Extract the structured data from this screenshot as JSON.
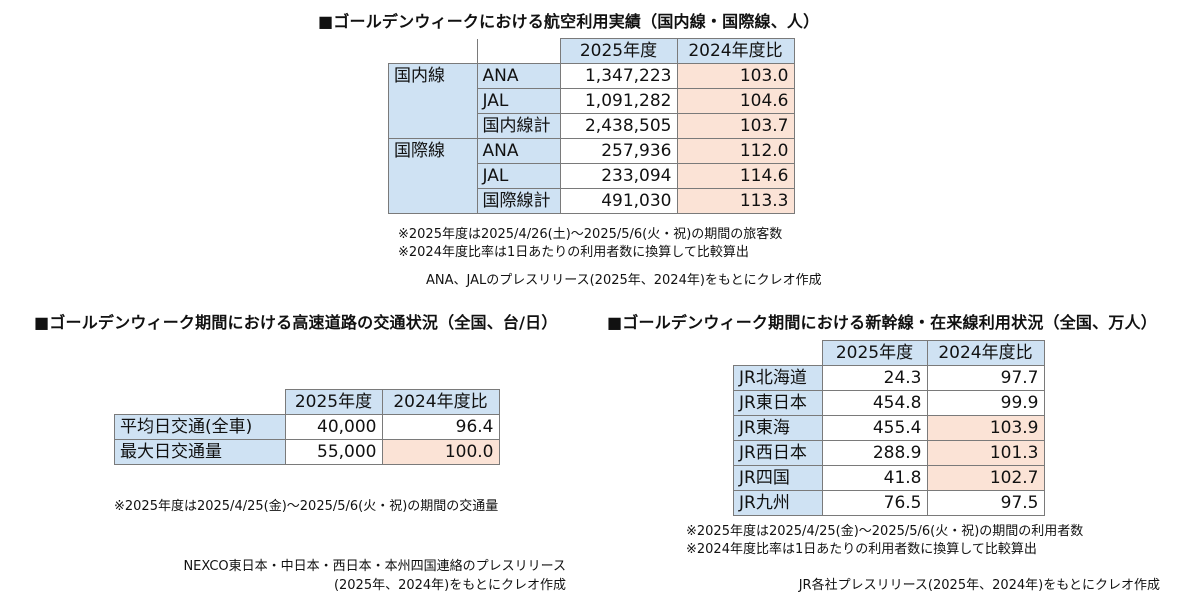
{
  "air": {
    "title": "■ゴールデンウィークにおける航空利用実績（国内線・国際線、人）",
    "col1": "2025年度",
    "col2": "2024年度比",
    "groups": [
      {
        "group": "国内線",
        "rows": [
          {
            "label": "ANA",
            "value": "1,347,223",
            "ratio": "103.0"
          },
          {
            "label": "JAL",
            "value": "1,091,282",
            "ratio": "104.6"
          },
          {
            "label": "国内線計",
            "value": "2,438,505",
            "ratio": "103.7"
          }
        ]
      },
      {
        "group": "国際線",
        "rows": [
          {
            "label": "ANA",
            "value": "257,936",
            "ratio": "112.0"
          },
          {
            "label": "JAL",
            "value": "233,094",
            "ratio": "114.6"
          },
          {
            "label": "国際線計",
            "value": "491,030",
            "ratio": "113.3"
          }
        ]
      }
    ],
    "note1": "※2025年度は2025/4/26(土)～2025/5/6(火・祝)の期間の旅客数",
    "note2": "※2024年度比率は1日あたりの利用者数に換算して比較算出",
    "source": "ANA、JALのプレスリリース(2025年、2024年)をもとにクレオ作成"
  },
  "highway": {
    "title": "■ゴールデンウィーク期間における高速道路の交通状況（全国、台/日）",
    "col1": "2025年度",
    "col2": "2024年度比",
    "rows": [
      {
        "label": "平均日交通(全車)",
        "value": "40,000",
        "ratio": "96.4"
      },
      {
        "label": "最大日交通量",
        "value": "55,000",
        "ratio": "100.0"
      }
    ],
    "note1": "※2025年度は2025/4/25(金)～2025/5/6(火・祝)の期間の交通量",
    "source1": "NEXCO東日本・中日本・西日本・本州四国連絡のプレスリリース",
    "source2": "(2025年、2024年)をもとにクレオ作成"
  },
  "rail": {
    "title": "■ゴールデンウィーク期間における新幹線・在来線利用状況（全国、万人）",
    "col1": "2025年度",
    "col2": "2024年度比",
    "rows": [
      {
        "label": "JR北海道",
        "value": "24.3",
        "ratio": "97.7"
      },
      {
        "label": "JR東日本",
        "value": "454.8",
        "ratio": "99.9"
      },
      {
        "label": "JR東海",
        "value": "455.4",
        "ratio": "103.9"
      },
      {
        "label": "JR西日本",
        "value": "288.9",
        "ratio": "101.3"
      },
      {
        "label": "JR四国",
        "value": "41.8",
        "ratio": "102.7"
      },
      {
        "label": "JR九州",
        "value": "76.5",
        "ratio": "97.5"
      }
    ],
    "note1": "※2025年度は2025/4/25(金)～2025/5/6(火・祝)の期間の利用者数",
    "note2": "※2024年度比率は1日あたりの利用者数に換算して比較算出",
    "source": "JR各社プレスリリース(2025年、2024年)をもとにクレオ作成"
  },
  "colors": {
    "header": "#cfe2f3",
    "highlight": "#fbe3d6"
  }
}
